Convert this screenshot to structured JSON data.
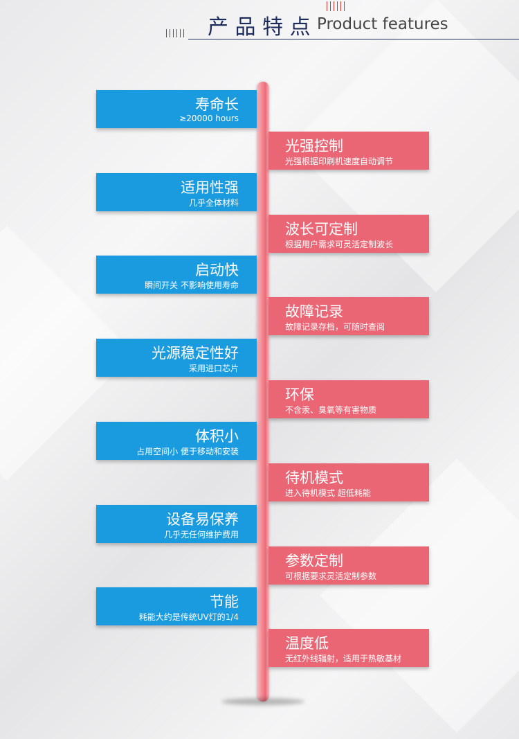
{
  "header": {
    "title": "产 品 特 点",
    "subtitle": "Product features"
  },
  "left_items": [
    {
      "title": "寿命长",
      "desc": "≥20000 hours"
    },
    {
      "title": "适用性强",
      "desc": "几乎全体材料"
    },
    {
      "title": "启动快",
      "desc": "瞬间开关  不影响使用寿命"
    },
    {
      "title": "光源稳定性好",
      "desc": "采用进口芯片"
    },
    {
      "title": "体积小",
      "desc": "占用空间小  便于移动和安装"
    },
    {
      "title": "设备易保养",
      "desc": "几乎无任何维护费用"
    },
    {
      "title": "节能",
      "desc": "耗能大约是传统UV灯的1/4"
    }
  ],
  "right_items": [
    {
      "title": "光强控制",
      "desc": "光强根据印刷机速度自动调节"
    },
    {
      "title": "波长可定制",
      "desc": "根据用户需求可灵活定制波长"
    },
    {
      "title": "故障记录",
      "desc": "故障记录存档，可随时查阅"
    },
    {
      "title": "环保",
      "desc": "不含汞、臭氧等有害物质"
    },
    {
      "title": "待机模式",
      "desc": "进入待机模式 超低耗能"
    },
    {
      "title": "参数定制",
      "desc": "可根据要求灵活定制参数"
    },
    {
      "title": "温度低",
      "desc": "无红外线辐射，适用于热敏基材"
    }
  ]
}
